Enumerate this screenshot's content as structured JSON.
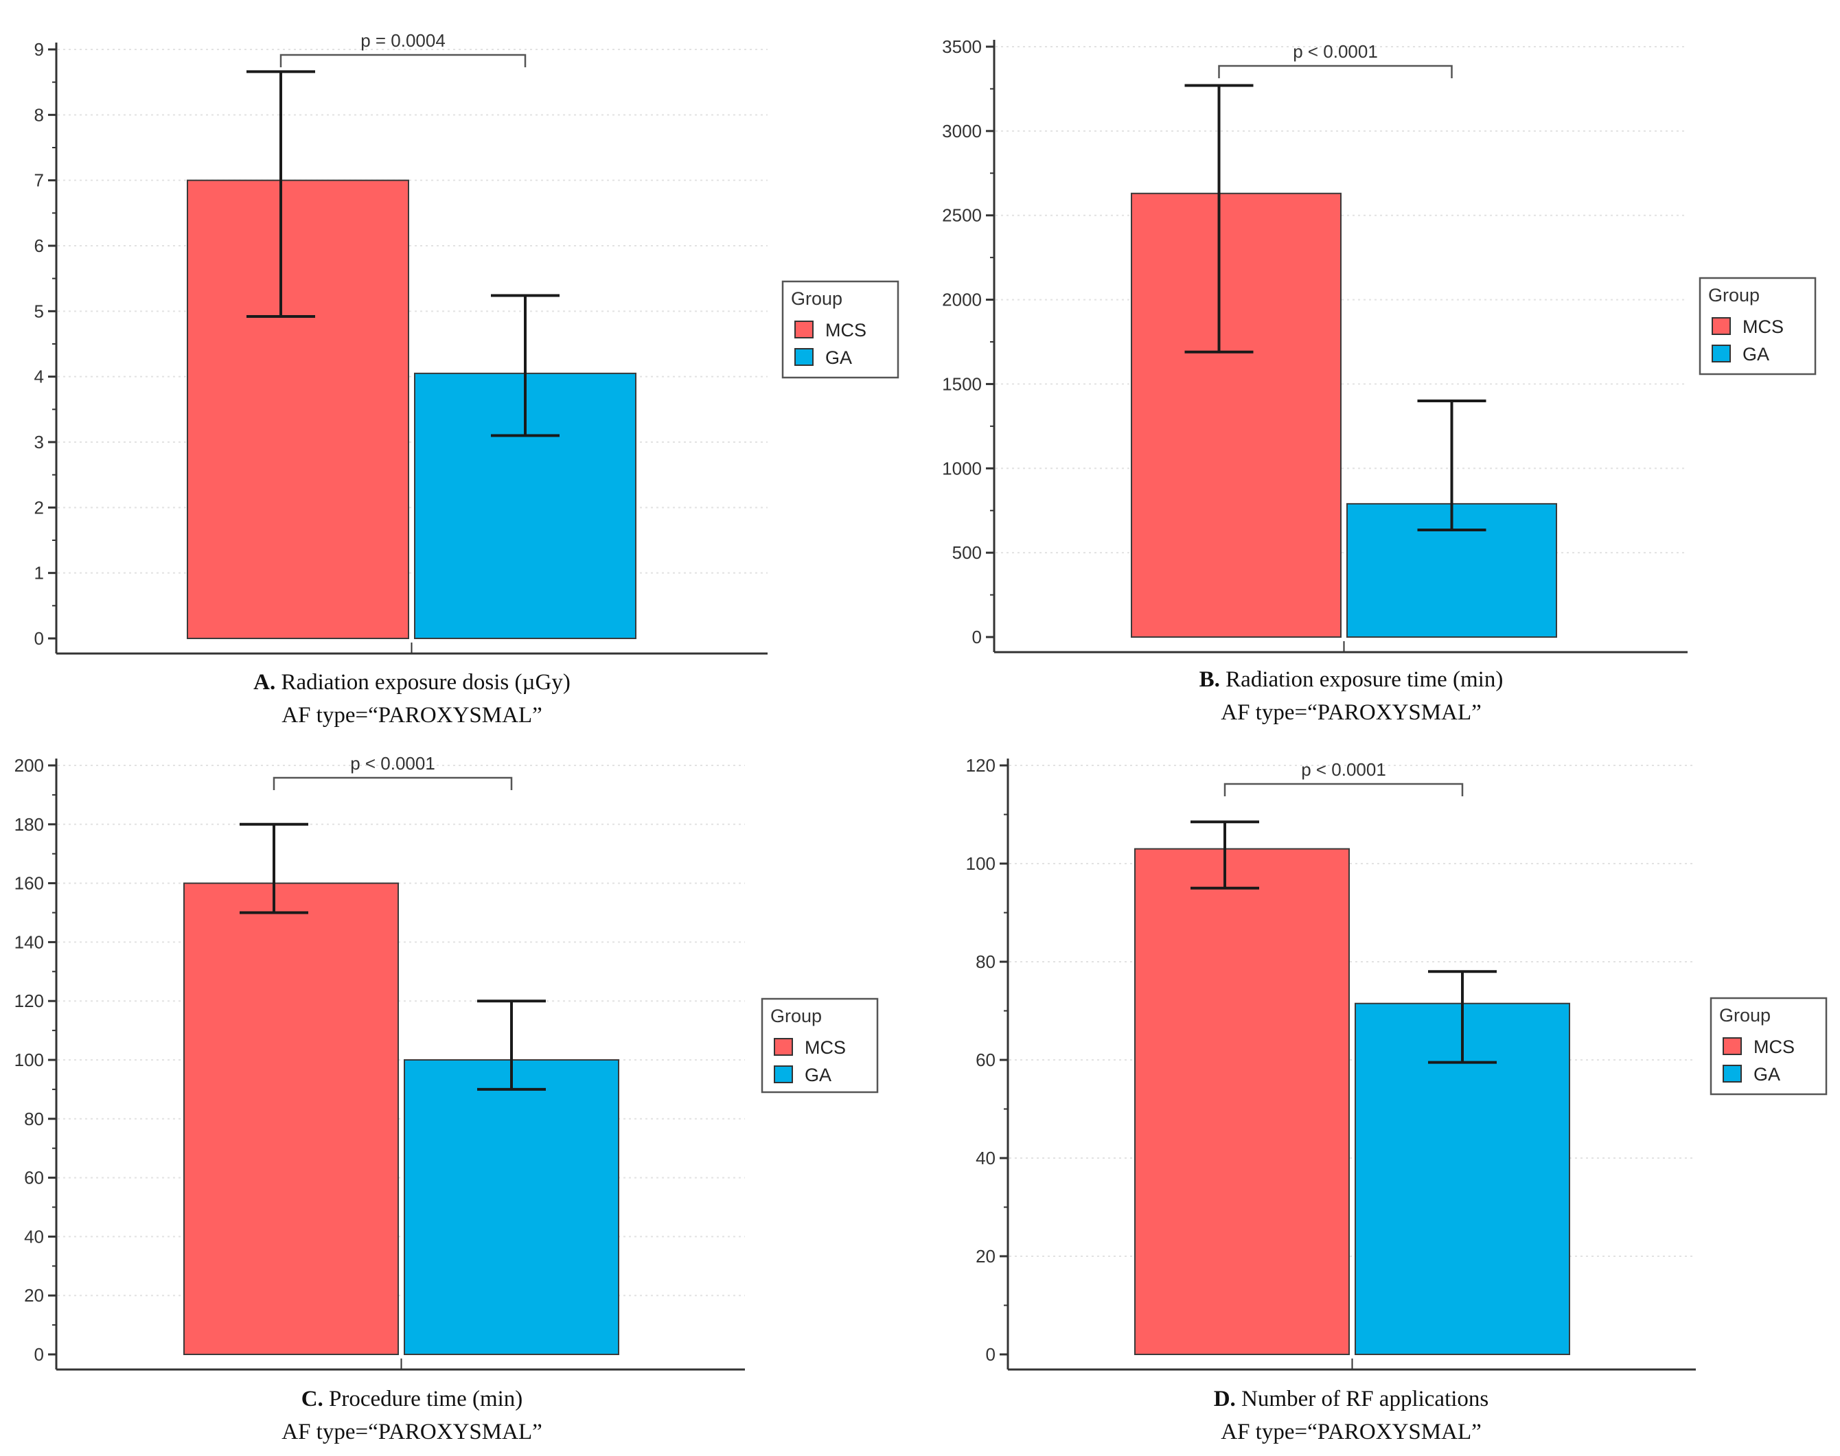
{
  "colors": {
    "mcs": "#FF6161",
    "ga": "#00B0E8",
    "axis": "#333333",
    "grid": "#E2E2E2",
    "bar_outline": "#3A3A3A",
    "error_bar": "#1A1A1A",
    "bracket": "#555555"
  },
  "chart_data": [
    {
      "type": "bar",
      "panel": "A",
      "categories": [
        "MCS",
        "GA"
      ],
      "values": [
        7.0,
        4.05
      ],
      "error_low": [
        4.92,
        3.1
      ],
      "error_high": [
        8.66,
        5.24
      ],
      "ylim": [
        0,
        9
      ],
      "yticks": [
        0,
        1,
        2,
        3,
        4,
        5,
        6,
        7,
        8,
        9
      ],
      "ytick_labels": [
        "0",
        "1",
        "2",
        "3",
        "4",
        "5",
        "6",
        "7",
        "8",
        "9"
      ],
      "pvalue": "p = 0.0004",
      "legend": {
        "title": "Group",
        "items": [
          "MCS",
          "GA"
        ],
        "position": "right"
      },
      "caption_label": "A.",
      "caption_text": "Radiation exposure dosis (µGy)",
      "caption_sub": "AF type=“PAROXYSMAL”",
      "grid": true
    },
    {
      "type": "bar",
      "panel": "B",
      "categories": [
        "MCS",
        "GA"
      ],
      "values": [
        2630,
        790
      ],
      "error_low": [
        1690,
        635
      ],
      "error_high": [
        3270,
        1400
      ],
      "ylim": [
        0,
        3500
      ],
      "yticks": [
        0,
        500,
        1000,
        1500,
        2000,
        2500,
        3000,
        3500
      ],
      "ytick_labels": [
        "0",
        "500",
        "1000",
        "1500",
        "2000",
        "2500",
        "3000",
        "3500"
      ],
      "pvalue": "p < 0.0001",
      "legend": {
        "title": "Group",
        "items": [
          "MCS",
          "GA"
        ],
        "position": "right"
      },
      "caption_label": "B.",
      "caption_text": "Radiation exposure time (min)",
      "caption_sub": "AF type=“PAROXYSMAL”",
      "grid": true
    },
    {
      "type": "bar",
      "panel": "C",
      "categories": [
        "MCS",
        "GA"
      ],
      "values": [
        160,
        100
      ],
      "error_low": [
        150,
        90
      ],
      "error_high": [
        180,
        120
      ],
      "ylim": [
        0,
        200
      ],
      "yticks": [
        0,
        20,
        40,
        60,
        80,
        100,
        120,
        140,
        160,
        180,
        200
      ],
      "ytick_labels": [
        "0",
        "20",
        "40",
        "60",
        "80",
        "100",
        "120",
        "140",
        "160",
        "180",
        "200"
      ],
      "pvalue": "p < 0.0001",
      "legend": {
        "title": "Group",
        "items": [
          "MCS",
          "GA"
        ],
        "position": "right"
      },
      "caption_label": "C.",
      "caption_text": "Procedure time (min)",
      "caption_sub": "AF type=“PAROXYSMAL”",
      "grid": true
    },
    {
      "type": "bar",
      "panel": "D",
      "categories": [
        "MCS",
        "GA"
      ],
      "values": [
        103,
        71.5
      ],
      "error_low": [
        95,
        59.5
      ],
      "error_high": [
        108.5,
        78
      ],
      "ylim": [
        0,
        120
      ],
      "yticks": [
        0,
        20,
        40,
        60,
        80,
        100,
        120
      ],
      "ytick_labels": [
        "0",
        "20",
        "40",
        "60",
        "80",
        "100",
        "120"
      ],
      "pvalue": "p < 0.0001",
      "legend": {
        "title": "Group",
        "items": [
          "MCS",
          "GA"
        ],
        "position": "right"
      },
      "caption_label": "D.",
      "caption_text": "Number of RF applications",
      "caption_sub": "AF type=“PAROXYSMAL”",
      "grid": true
    }
  ]
}
